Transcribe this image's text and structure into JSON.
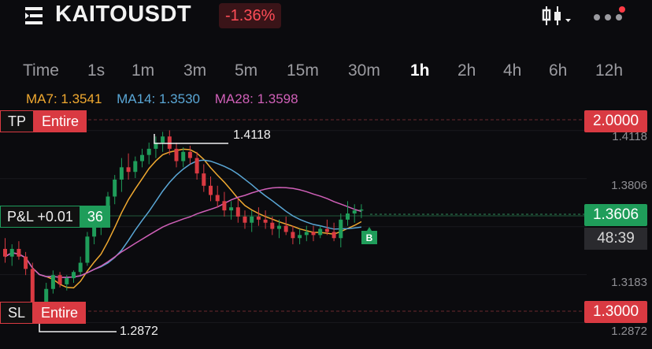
{
  "header": {
    "symbol": "KAITOUSDT",
    "change": "-1.36%",
    "icons": [
      "menu-icon",
      "candlestick-settings-icon",
      "more-icon"
    ]
  },
  "timeframes": [
    {
      "label": "Time",
      "active": false
    },
    {
      "label": "1s",
      "active": false
    },
    {
      "label": "1m",
      "active": false
    },
    {
      "label": "3m",
      "active": false
    },
    {
      "label": "5m",
      "active": false
    },
    {
      "label": "15m",
      "active": false
    },
    {
      "label": "30m",
      "active": false
    },
    {
      "label": "1h",
      "active": true
    },
    {
      "label": "2h",
      "active": false
    },
    {
      "label": "4h",
      "active": false
    },
    {
      "label": "6h",
      "active": false
    },
    {
      "label": "12h",
      "active": false
    }
  ],
  "indicators": {
    "ma7": {
      "label": "MA7: 1.3541",
      "color": "#f0a930"
    },
    "ma14": {
      "label": "MA14: 1.3530",
      "color": "#5aa7d6"
    },
    "ma28": {
      "label": "MA28: 1.3598",
      "color": "#d060b8"
    }
  },
  "orders": {
    "tp": {
      "label": "TP",
      "scope": "Entire",
      "price": "2.0000"
    },
    "sl": {
      "label": "SL",
      "scope": "Entire",
      "price": "1.3000"
    },
    "position": {
      "pnl": "P&L +0.01",
      "qty": "36",
      "marker": "B"
    }
  },
  "price_axis": {
    "current_price": "1.3606",
    "countdown": "48:39",
    "ticks": [
      "1.4118",
      "1.3806",
      "1.3183",
      "1.2872"
    ]
  },
  "annotations": {
    "high": "1.4118",
    "low": "1.2872"
  },
  "colors": {
    "up": "#1f9d5a",
    "down": "#d93a42",
    "background": "#0b0b0e"
  },
  "chart_data": {
    "type": "candlestick",
    "interval": "1h",
    "ylim": [
      1.27,
      1.425
    ],
    "candles": [
      [
        1.335,
        1.342,
        1.326,
        1.33
      ],
      [
        1.33,
        1.338,
        1.324,
        1.335
      ],
      [
        1.335,
        1.34,
        1.328,
        1.33
      ],
      [
        1.33,
        1.333,
        1.318,
        1.322
      ],
      [
        1.322,
        1.326,
        1.29,
        1.296
      ],
      [
        1.296,
        1.3,
        1.287,
        1.297
      ],
      [
        1.297,
        1.313,
        1.295,
        1.309
      ],
      [
        1.309,
        1.321,
        1.306,
        1.318
      ],
      [
        1.318,
        1.32,
        1.31,
        1.312
      ],
      [
        1.312,
        1.318,
        1.308,
        1.316
      ],
      [
        1.316,
        1.321,
        1.313,
        1.32
      ],
      [
        1.32,
        1.33,
        1.318,
        1.326
      ],
      [
        1.326,
        1.346,
        1.324,
        1.343
      ],
      [
        1.343,
        1.354,
        1.338,
        1.35
      ],
      [
        1.35,
        1.358,
        1.344,
        1.354
      ],
      [
        1.354,
        1.372,
        1.35,
        1.369
      ],
      [
        1.369,
        1.383,
        1.364,
        1.38
      ],
      [
        1.38,
        1.394,
        1.372,
        1.388
      ],
      [
        1.388,
        1.397,
        1.38,
        1.385
      ],
      [
        1.385,
        1.395,
        1.381,
        1.392
      ],
      [
        1.392,
        1.4,
        1.388,
        1.396
      ],
      [
        1.396,
        1.404,
        1.39,
        1.4
      ],
      [
        1.4,
        1.408,
        1.394,
        1.404
      ],
      [
        1.404,
        1.411,
        1.398,
        1.408
      ],
      [
        1.408,
        1.412,
        1.396,
        1.4
      ],
      [
        1.4,
        1.404,
        1.388,
        1.392
      ],
      [
        1.392,
        1.401,
        1.388,
        1.398
      ],
      [
        1.398,
        1.402,
        1.39,
        1.394
      ],
      [
        1.394,
        1.398,
        1.38,
        1.384
      ],
      [
        1.384,
        1.39,
        1.372,
        1.376
      ],
      [
        1.376,
        1.382,
        1.366,
        1.37
      ],
      [
        1.37,
        1.376,
        1.362,
        1.366
      ],
      [
        1.366,
        1.372,
        1.356,
        1.36
      ],
      [
        1.36,
        1.366,
        1.354,
        1.362
      ],
      [
        1.362,
        1.368,
        1.352,
        1.356
      ],
      [
        1.356,
        1.36,
        1.348,
        1.352
      ],
      [
        1.352,
        1.36,
        1.346,
        1.356
      ],
      [
        1.356,
        1.362,
        1.35,
        1.354
      ],
      [
        1.354,
        1.36,
        1.348,
        1.352
      ],
      [
        1.352,
        1.356,
        1.344,
        1.348
      ],
      [
        1.348,
        1.354,
        1.342,
        1.35
      ],
      [
        1.35,
        1.356,
        1.344,
        1.346
      ],
      [
        1.346,
        1.35,
        1.338,
        1.342
      ],
      [
        1.342,
        1.348,
        1.338,
        1.344
      ],
      [
        1.344,
        1.35,
        1.34,
        1.346
      ],
      [
        1.346,
        1.35,
        1.34,
        1.344
      ],
      [
        1.344,
        1.35,
        1.342,
        1.348
      ],
      [
        1.348,
        1.354,
        1.344,
        1.346
      ],
      [
        1.346,
        1.352,
        1.34,
        1.342
      ],
      [
        1.342,
        1.358,
        1.336,
        1.354
      ],
      [
        1.354,
        1.366,
        1.35,
        1.358
      ],
      [
        1.358,
        1.364,
        1.352,
        1.36
      ],
      [
        1.36,
        1.364,
        1.355,
        1.3606
      ]
    ]
  }
}
